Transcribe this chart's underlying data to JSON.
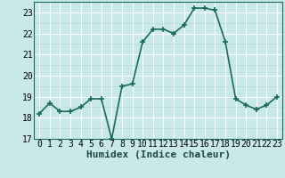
{
  "x": [
    0,
    1,
    2,
    3,
    4,
    5,
    6,
    7,
    8,
    9,
    10,
    11,
    12,
    13,
    14,
    15,
    16,
    17,
    18,
    19,
    20,
    21,
    22,
    23
  ],
  "y": [
    18.2,
    18.7,
    18.3,
    18.3,
    18.5,
    18.9,
    18.9,
    17.0,
    19.5,
    19.6,
    21.6,
    22.2,
    22.2,
    22.0,
    22.4,
    23.2,
    23.2,
    23.1,
    21.6,
    18.9,
    18.6,
    18.4,
    18.6,
    19.0
  ],
  "xlabel": "Humidex (Indice chaleur)",
  "ylim": [
    17,
    23.5
  ],
  "yticks": [
    17,
    18,
    19,
    20,
    21,
    22,
    23
  ],
  "line_color": "#1a6b5a",
  "bg_color": "#c8e8ea",
  "grid_major_color": "#ffffff",
  "grid_minor_color": "#b8d8da",
  "marker": "+",
  "linewidth": 1.2,
  "markersize": 4,
  "markeredgewidth": 1.2,
  "xlabel_fontsize": 8,
  "tick_fontsize": 7
}
